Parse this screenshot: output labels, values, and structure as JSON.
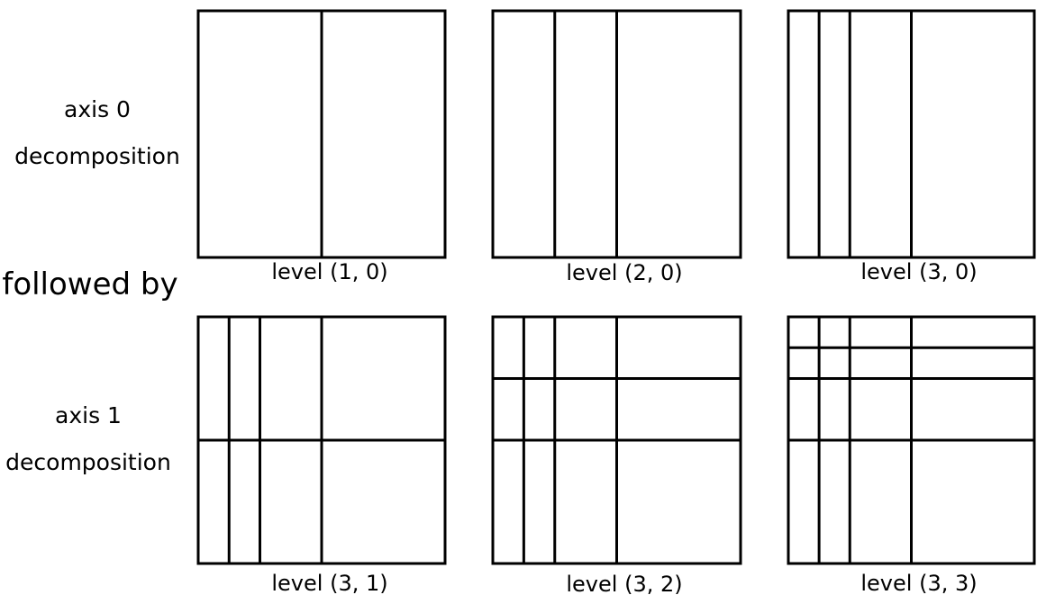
{
  "labels": {
    "axis0_line1": "axis 0",
    "axis0_line2": "decomposition",
    "followed_by": "followed by",
    "axis1_line1": "axis 1",
    "axis1_line2": "decomposition"
  },
  "panels": [
    {
      "id": "p10",
      "caption": "level (1, 0)",
      "vsplits": [
        0.5
      ],
      "hsplits": []
    },
    {
      "id": "p20",
      "caption": "level (2, 0)",
      "vsplits": [
        0.25,
        0.5
      ],
      "hsplits": []
    },
    {
      "id": "p30",
      "caption": "level (3, 0)",
      "vsplits": [
        0.125,
        0.25,
        0.5
      ],
      "hsplits": []
    },
    {
      "id": "p31",
      "caption": "level (3, 1)",
      "vsplits": [
        0.125,
        0.25,
        0.5
      ],
      "hsplits": [
        0.5
      ]
    },
    {
      "id": "p32",
      "caption": "level (3, 2)",
      "vsplits": [
        0.125,
        0.25,
        0.5
      ],
      "hsplits": [
        0.25,
        0.5
      ]
    },
    {
      "id": "p33",
      "caption": "level (3, 3)",
      "vsplits": [
        0.125,
        0.25,
        0.5
      ],
      "hsplits": [
        0.125,
        0.25,
        0.5
      ]
    }
  ],
  "colors": {
    "stroke": "#000000",
    "fill": "#ffffff"
  }
}
